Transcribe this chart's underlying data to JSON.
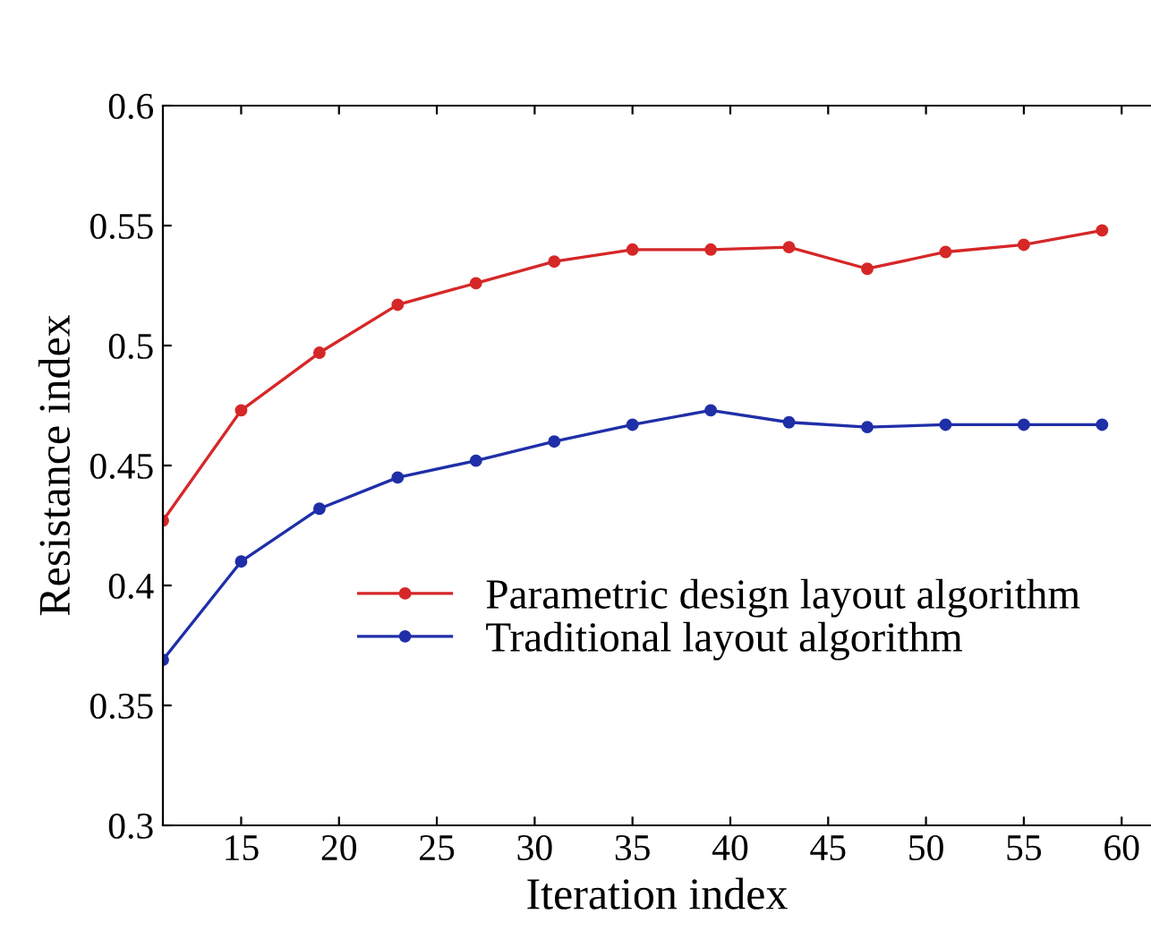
{
  "chart_data": {
    "type": "line",
    "xlabel": "Iteration index",
    "ylabel": "Resistance index",
    "x": [
      11,
      15,
      19,
      23,
      27,
      31,
      35,
      39,
      43,
      47,
      51,
      55,
      59
    ],
    "series": [
      {
        "name": "Parametric design layout algorithm",
        "color": "#d62728",
        "values": [
          0.427,
          0.473,
          0.497,
          0.517,
          0.526,
          0.535,
          0.54,
          0.54,
          0.541,
          0.532,
          0.539,
          0.542,
          0.548
        ]
      },
      {
        "name": "Traditional layout algorithm",
        "color": "#1f2fa8",
        "values": [
          0.369,
          0.41,
          0.432,
          0.445,
          0.452,
          0.46,
          0.467,
          0.473,
          0.468,
          0.466,
          0.467,
          0.467,
          0.467
        ]
      }
    ],
    "xlim": [
      11,
      61.5
    ],
    "xticks": [
      15,
      20,
      25,
      30,
      35,
      40,
      45,
      50,
      55,
      60
    ],
    "ylim": [
      0.3,
      0.6
    ],
    "yticks": [
      0.3,
      0.35,
      0.4,
      0.45,
      0.5,
      0.55,
      0.6
    ],
    "grid": false,
    "legend": "lower right",
    "marker": "circle",
    "line_style": "solid"
  }
}
